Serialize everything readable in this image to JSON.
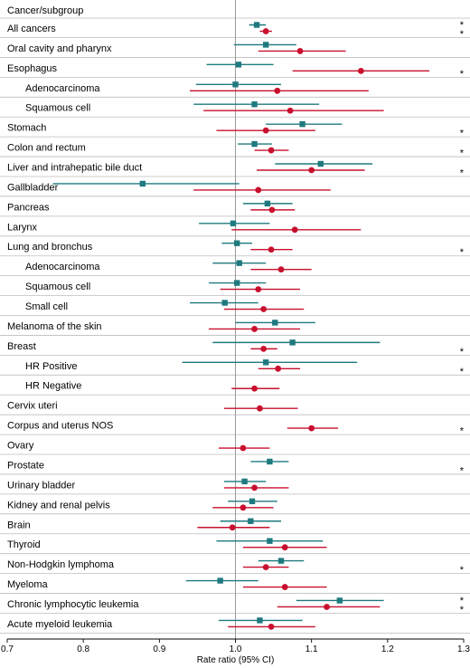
{
  "chart_data": {
    "type": "forest",
    "header": "Cancer/subgroup",
    "xlabel": "Rate ratio (95% CI)",
    "xlim": [
      0.7,
      1.3
    ],
    "xticks": [
      "0.7",
      "0.8",
      "0.9",
      "1.0",
      "1.1",
      "1.2",
      "1.3"
    ],
    "reference_line": 1.0,
    "colors": {
      "series_a": "#1f7a7f",
      "series_b": "#c8102e",
      "reference": "#9a9a9a",
      "row_rule": "#bdbdbd"
    },
    "markers": {
      "series_a": "square",
      "series_b": "circle"
    },
    "rows": [
      {
        "label": "All cancers",
        "indent": false,
        "a": {
          "est": 1.028,
          "lo": 1.018,
          "hi": 1.04
        },
        "b": {
          "est": 1.04,
          "lo": 1.032,
          "hi": 1.048
        },
        "stars": [
          "*",
          "*"
        ]
      },
      {
        "label": "Oral cavity and pharynx",
        "indent": false,
        "a": {
          "est": 1.04,
          "lo": 0.998,
          "hi": 1.08
        },
        "b": {
          "est": 1.085,
          "lo": 1.03,
          "hi": 1.145
        },
        "stars": []
      },
      {
        "label": "Esophagus",
        "indent": false,
        "a": {
          "est": 1.004,
          "lo": 0.962,
          "hi": 1.05
        },
        "b": {
          "est": 1.165,
          "lo": 1.075,
          "hi": 1.255
        },
        "stars": [
          "*"
        ]
      },
      {
        "label": "Adenocarcinoma",
        "indent": true,
        "a": {
          "est": 1.0,
          "lo": 0.948,
          "hi": 1.06
        },
        "b": {
          "est": 1.055,
          "lo": 0.94,
          "hi": 1.175
        },
        "stars": []
      },
      {
        "label": "Squamous cell",
        "indent": true,
        "a": {
          "est": 1.025,
          "lo": 0.945,
          "hi": 1.11
        },
        "b": {
          "est": 1.072,
          "lo": 0.958,
          "hi": 1.195
        },
        "stars": []
      },
      {
        "label": "Stomach",
        "indent": false,
        "a": {
          "est": 1.088,
          "lo": 1.04,
          "hi": 1.14
        },
        "b": {
          "est": 1.04,
          "lo": 0.975,
          "hi": 1.105
        },
        "stars": [
          "*"
        ]
      },
      {
        "label": "Colon and rectum",
        "indent": false,
        "a": {
          "est": 1.025,
          "lo": 1.003,
          "hi": 1.048
        },
        "b": {
          "est": 1.047,
          "lo": 1.025,
          "hi": 1.07
        },
        "stars": [
          "*"
        ]
      },
      {
        "label": "Liver and intrahepatic bile duct",
        "indent": false,
        "a": {
          "est": 1.112,
          "lo": 1.052,
          "hi": 1.18
        },
        "b": {
          "est": 1.1,
          "lo": 1.028,
          "hi": 1.17
        },
        "stars": [
          "*"
        ]
      },
      {
        "label": "Gallbladder",
        "indent": false,
        "a": {
          "est": 0.878,
          "lo": 0.76,
          "hi": 1.005
        },
        "b": {
          "est": 1.03,
          "lo": 0.945,
          "hi": 1.125
        },
        "stars": []
      },
      {
        "label": "Pancreas",
        "indent": false,
        "a": {
          "est": 1.042,
          "lo": 1.01,
          "hi": 1.075
        },
        "b": {
          "est": 1.048,
          "lo": 1.02,
          "hi": 1.078
        },
        "stars": []
      },
      {
        "label": "Larynx",
        "indent": false,
        "a": {
          "est": 0.997,
          "lo": 0.952,
          "hi": 1.045
        },
        "b": {
          "est": 1.078,
          "lo": 0.995,
          "hi": 1.165
        },
        "stars": []
      },
      {
        "label": "Lung and bronchus",
        "indent": false,
        "a": {
          "est": 1.002,
          "lo": 0.982,
          "hi": 1.022
        },
        "b": {
          "est": 1.047,
          "lo": 1.02,
          "hi": 1.075
        },
        "stars": [
          "*"
        ]
      },
      {
        "label": "Adenocarcinoma",
        "indent": true,
        "a": {
          "est": 1.005,
          "lo": 0.97,
          "hi": 1.04
        },
        "b": {
          "est": 1.06,
          "lo": 1.02,
          "hi": 1.1
        },
        "stars": []
      },
      {
        "label": "Squamous cell",
        "indent": true,
        "a": {
          "est": 1.002,
          "lo": 0.965,
          "hi": 1.04
        },
        "b": {
          "est": 1.03,
          "lo": 0.98,
          "hi": 1.085
        },
        "stars": []
      },
      {
        "label": "Small cell",
        "indent": true,
        "a": {
          "est": 0.986,
          "lo": 0.94,
          "hi": 1.03
        },
        "b": {
          "est": 1.037,
          "lo": 0.985,
          "hi": 1.09
        },
        "stars": []
      },
      {
        "label": "Melanoma of the skin",
        "indent": false,
        "a": {
          "est": 1.052,
          "lo": 1.0,
          "hi": 1.105
        },
        "b": {
          "est": 1.025,
          "lo": 0.965,
          "hi": 1.085
        },
        "stars": []
      },
      {
        "label": "Breast",
        "indent": false,
        "a": {
          "est": 1.075,
          "lo": 0.97,
          "hi": 1.19
        },
        "b": {
          "est": 1.037,
          "lo": 1.02,
          "hi": 1.055
        },
        "stars": [
          "*"
        ]
      },
      {
        "label": "HR Positive",
        "indent": true,
        "a": {
          "est": 1.04,
          "lo": 0.93,
          "hi": 1.16
        },
        "b": {
          "est": 1.056,
          "lo": 1.03,
          "hi": 1.085
        },
        "stars": [
          "*"
        ]
      },
      {
        "label": "HR Negative",
        "indent": true,
        "a": null,
        "b": {
          "est": 1.025,
          "lo": 0.995,
          "hi": 1.058
        },
        "stars": []
      },
      {
        "label": "Cervix uteri",
        "indent": false,
        "a": null,
        "b": {
          "est": 1.032,
          "lo": 0.985,
          "hi": 1.082
        },
        "stars": []
      },
      {
        "label": "Corpus and uterus NOS",
        "indent": false,
        "a": null,
        "b": {
          "est": 1.1,
          "lo": 1.068,
          "hi": 1.135
        },
        "stars": [
          "*"
        ]
      },
      {
        "label": "Ovary",
        "indent": false,
        "a": null,
        "b": {
          "est": 1.01,
          "lo": 0.978,
          "hi": 1.045
        },
        "stars": []
      },
      {
        "label": "Prostate",
        "indent": false,
        "a": {
          "est": 1.045,
          "lo": 1.02,
          "hi": 1.07
        },
        "b": null,
        "stars": [
          "*"
        ]
      },
      {
        "label": "Urinary bladder",
        "indent": false,
        "a": {
          "est": 1.012,
          "lo": 0.985,
          "hi": 1.04
        },
        "b": {
          "est": 1.025,
          "lo": 0.985,
          "hi": 1.07
        },
        "stars": []
      },
      {
        "label": "Kidney and renal pelvis",
        "indent": false,
        "a": {
          "est": 1.022,
          "lo": 0.99,
          "hi": 1.055
        },
        "b": {
          "est": 1.01,
          "lo": 0.97,
          "hi": 1.05
        },
        "stars": []
      },
      {
        "label": "Brain",
        "indent": false,
        "a": {
          "est": 1.02,
          "lo": 0.98,
          "hi": 1.06
        },
        "b": {
          "est": 0.996,
          "lo": 0.95,
          "hi": 1.045
        },
        "stars": []
      },
      {
        "label": "Thyroid",
        "indent": false,
        "a": {
          "est": 1.045,
          "lo": 0.975,
          "hi": 1.115
        },
        "b": {
          "est": 1.065,
          "lo": 1.01,
          "hi": 1.12
        },
        "stars": []
      },
      {
        "label": "Non-Hodgkin lymphoma",
        "indent": false,
        "a": {
          "est": 1.06,
          "lo": 1.03,
          "hi": 1.09
        },
        "b": {
          "est": 1.04,
          "lo": 1.01,
          "hi": 1.07
        },
        "stars": [
          "*"
        ]
      },
      {
        "label": "Myeloma",
        "indent": false,
        "a": {
          "est": 0.98,
          "lo": 0.935,
          "hi": 1.03
        },
        "b": {
          "est": 1.065,
          "lo": 1.01,
          "hi": 1.12
        },
        "stars": []
      },
      {
        "label": "Chronic lymphocytic leukemia",
        "indent": false,
        "a": {
          "est": 1.137,
          "lo": 1.08,
          "hi": 1.195
        },
        "b": {
          "est": 1.12,
          "lo": 1.055,
          "hi": 1.19
        },
        "stars": [
          "*",
          "*"
        ]
      },
      {
        "label": "Acute myeloid leukemia",
        "indent": false,
        "a": {
          "est": 1.032,
          "lo": 0.978,
          "hi": 1.088
        },
        "b": {
          "est": 1.047,
          "lo": 0.99,
          "hi": 1.105
        },
        "stars": []
      }
    ]
  }
}
